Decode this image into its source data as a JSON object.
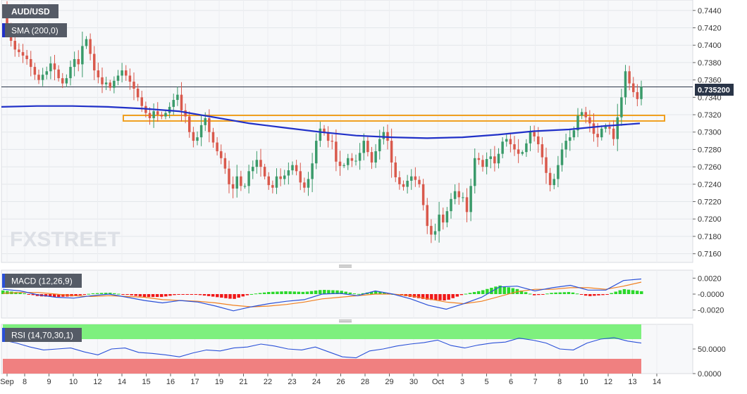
{
  "symbol_label": "AUD/USD",
  "sma_label": "SMA (200,0)",
  "macd_label": "MACD (12,26,9)",
  "rsi_label": "RSI (14,70,30,1)",
  "watermark": "FXSTREET",
  "current_price_label": "0.735200",
  "colors": {
    "up": "#3a9a6a",
    "down": "#d9594c",
    "sma": "#2030c8",
    "support": "#f0a020",
    "macd_line": "#2a50d8",
    "signal_line": "#f08020",
    "hist_pos": "#2bd82b",
    "hist_neg": "#f01818",
    "rsi_line": "#2a50d8",
    "rsi_over": "#7ef07e",
    "rsi_under": "#f08080"
  },
  "chart_data": [
    {
      "type": "candlestick",
      "title": "AUD/USD",
      "x_tick_labels": [
        "Sep",
        "8",
        "9",
        "10",
        "12",
        "14",
        "15",
        "16",
        "17",
        "19",
        "21",
        "22",
        "23",
        "24",
        "26",
        "28",
        "29",
        "30",
        "Oct",
        "3",
        "5",
        "6",
        "7",
        "8",
        "10",
        "12",
        "13",
        "14"
      ],
      "y_tick_labels": [
        "0.7440",
        "0.7420",
        "0.7400",
        "0.7380",
        "0.7360",
        "0.7340",
        "0.7320",
        "0.7300",
        "0.7280",
        "0.7260",
        "0.7240",
        "0.7220",
        "0.7200",
        "0.7180",
        "0.7160"
      ],
      "ylim": [
        0.715,
        0.7452
      ],
      "current_price": 0.7352,
      "support_zone": [
        0.7314,
        0.7318
      ],
      "sma_200": [
        0.7329,
        0.733,
        0.733,
        0.7329,
        0.7327,
        0.7324,
        0.7317,
        0.731,
        0.7305,
        0.73,
        0.7296,
        0.7294,
        0.7293,
        0.7294,
        0.7297,
        0.7301,
        0.7303,
        0.7307,
        0.731
      ],
      "ohlc_first": 0.7445,
      "candle_closes": [
        0.742,
        0.7405,
        0.7395,
        0.7392,
        0.7388,
        0.7384,
        0.7375,
        0.7366,
        0.736,
        0.7366,
        0.737,
        0.7379,
        0.7372,
        0.7362,
        0.7356,
        0.7362,
        0.7375,
        0.7384,
        0.7378,
        0.7399,
        0.7407,
        0.739,
        0.7371,
        0.7363,
        0.7355,
        0.7357,
        0.7351,
        0.7359,
        0.7365,
        0.7371,
        0.7365,
        0.7358,
        0.735,
        0.734,
        0.733,
        0.7322,
        0.7316,
        0.7324,
        0.732,
        0.7318,
        0.7322,
        0.7329,
        0.7337,
        0.7343,
        0.7325,
        0.7318,
        0.73,
        0.729,
        0.7294,
        0.7308,
        0.7316,
        0.73,
        0.7288,
        0.7278,
        0.727,
        0.7258,
        0.724,
        0.7235,
        0.7249,
        0.7238,
        0.7238,
        0.7255,
        0.726,
        0.7268,
        0.726,
        0.7249,
        0.7239,
        0.7236,
        0.7249,
        0.7246,
        0.725,
        0.7256,
        0.7262,
        0.7255,
        0.7242,
        0.7236,
        0.7246,
        0.7264,
        0.729,
        0.7304,
        0.73,
        0.729,
        0.7289,
        0.7266,
        0.7261,
        0.7262,
        0.727,
        0.7267,
        0.7267,
        0.7276,
        0.729,
        0.7277,
        0.7265,
        0.7278,
        0.7292,
        0.73,
        0.729,
        0.7265,
        0.7248,
        0.724,
        0.7237,
        0.7244,
        0.7249,
        0.7245,
        0.724,
        0.7216,
        0.7192,
        0.7182,
        0.7186,
        0.7205,
        0.7196,
        0.7209,
        0.7223,
        0.7232,
        0.7225,
        0.7225,
        0.7208,
        0.7238,
        0.727,
        0.7268,
        0.726,
        0.7269,
        0.7272,
        0.7264,
        0.7275,
        0.7289,
        0.7292,
        0.7286,
        0.728,
        0.7275,
        0.7277,
        0.7287,
        0.73,
        0.7295,
        0.7286,
        0.7271,
        0.7253,
        0.7239,
        0.7246,
        0.7262,
        0.728,
        0.729,
        0.7294,
        0.7302,
        0.7319,
        0.7323,
        0.7317,
        0.731,
        0.7298,
        0.7294,
        0.7304,
        0.7306,
        0.7304,
        0.7292,
        0.7317,
        0.734,
        0.737,
        0.7356,
        0.7346,
        0.7338,
        0.7352
      ]
    },
    {
      "type": "line",
      "title": "MACD (12,26,9)",
      "y_tick_labels": [
        "0.0020",
        "-0.0000",
        "-0.0020"
      ],
      "ylim": [
        -0.003,
        0.003
      ],
      "series": [
        {
          "name": "MACD",
          "values": [
            0.0006,
            0.0004,
            -0.0001,
            -0.0004,
            -0.0005,
            -0.0002,
            0.0,
            -0.0004,
            -0.0008,
            -0.0011,
            -0.0008,
            -0.001,
            -0.0015,
            -0.0021,
            -0.0016,
            -0.0012,
            -0.0009,
            -0.0007,
            0.0,
            0.0001,
            -0.0002,
            0.0004,
            0.0,
            -0.0006,
            -0.0014,
            -0.0019,
            -0.0012,
            -0.0004,
            0.0009,
            0.001,
            0.0004,
            0.0008,
            0.0011,
            0.0005,
            0.0005,
            0.0017,
            0.0019
          ]
        },
        {
          "name": "Signal",
          "values": [
            0.0001,
            0.0002,
            0.0002,
            0.0,
            -0.0002,
            -0.0003,
            -0.0002,
            -0.0003,
            -0.0004,
            -0.0007,
            -0.0008,
            -0.0009,
            -0.0011,
            -0.0014,
            -0.0016,
            -0.0015,
            -0.0013,
            -0.001,
            -0.0006,
            -0.0004,
            -0.0002,
            0.0,
            0.0,
            -0.0002,
            -0.0006,
            -0.001,
            -0.0012,
            -0.0009,
            -0.0003,
            0.0003,
            0.0006,
            0.0006,
            0.0008,
            0.0008,
            0.0006,
            0.001,
            0.0015
          ]
        }
      ]
    },
    {
      "type": "line",
      "title": "RSI (14,70,30,1)",
      "y_tick_labels": [
        "50.0000",
        "0.0000"
      ],
      "ylim": [
        0,
        100
      ],
      "levels": [
        70,
        30
      ],
      "series": [
        {
          "name": "RSI",
          "values": [
            68,
            62,
            54,
            48,
            50,
            52,
            44,
            38,
            50,
            52,
            43,
            41,
            38,
            34,
            42,
            48,
            46,
            52,
            54,
            60,
            56,
            50,
            48,
            54,
            44,
            34,
            32,
            46,
            50,
            56,
            60,
            63,
            68,
            57,
            52,
            58,
            62,
            64,
            72,
            68,
            62,
            50,
            48,
            62,
            70,
            73,
            66,
            62
          ]
        }
      ]
    }
  ]
}
